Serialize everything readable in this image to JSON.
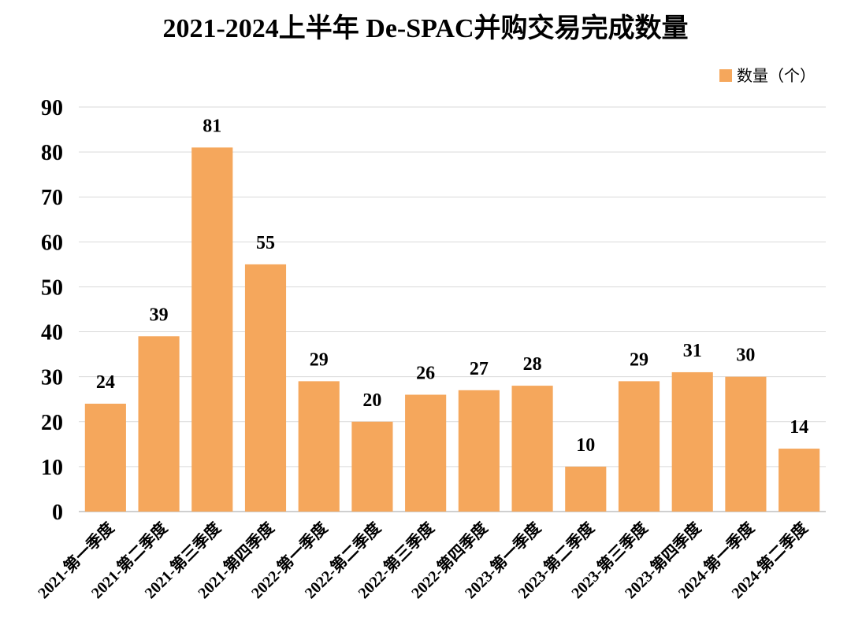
{
  "chart_data": {
    "type": "bar",
    "title": "2021-2024上半年 De-SPAC并购交易完成数量",
    "categories": [
      "2021-第一季度",
      "2021-第二季度",
      "2021-第三季度",
      "2021-第四季度",
      "2022-第一季度",
      "2022-第二季度",
      "2022-第三季度",
      "2022-第四季度",
      "2023-第一季度",
      "2023-第二季度",
      "2023-第三季度",
      "2023-第四季度",
      "2024-第一季度",
      "2024-第二季度"
    ],
    "series": [
      {
        "name": "数量（个）",
        "values": [
          24,
          39,
          81,
          55,
          29,
          20,
          26,
          27,
          28,
          10,
          29,
          31,
          30,
          14
        ],
        "color": "#F5A75C"
      }
    ],
    "ylim": [
      0,
      90
    ],
    "yticks": [
      0,
      10,
      20,
      30,
      40,
      50,
      60,
      70,
      80,
      90
    ],
    "grid": true,
    "grid_color": "#D9D9D9",
    "axis_color": "#BFBFBF",
    "legend_position": "top-right",
    "data_labels": true,
    "x_tick_rotation": "diagonal"
  }
}
